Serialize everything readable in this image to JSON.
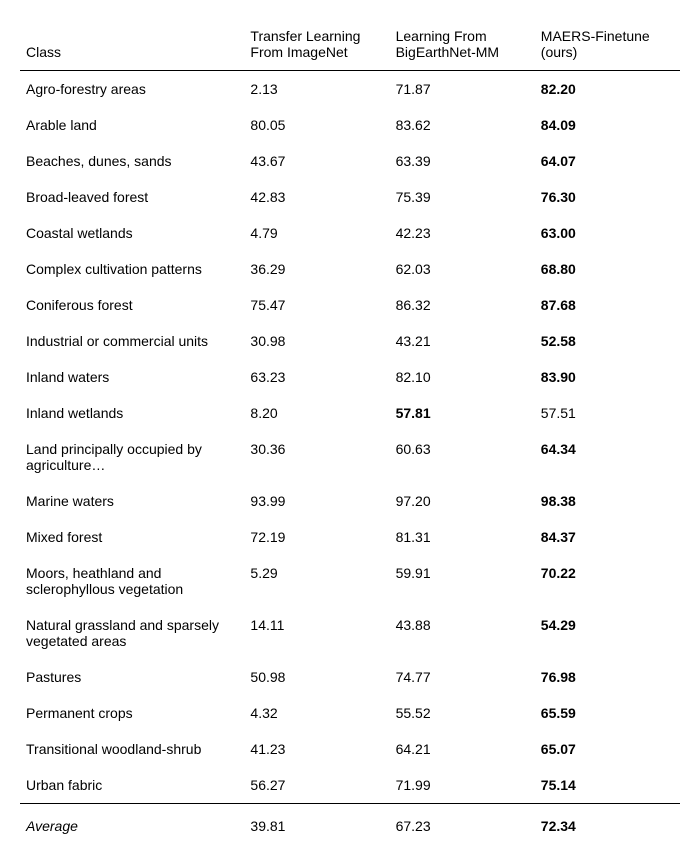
{
  "headers": {
    "class": "Class",
    "col1_l1": "Transfer Learning",
    "col1_l2": "From ImageNet",
    "col2_l1": "Learning From",
    "col2_l2": "BigEarthNet-MM",
    "col3": "MAERS-Finetune (ours)"
  },
  "rows": [
    {
      "class": "Agro-forestry areas",
      "v1": "2.13",
      "v2": "71.87",
      "v3": "82.20",
      "bold": 3
    },
    {
      "class": "Arable land",
      "v1": "80.05",
      "v2": "83.62",
      "v3": "84.09",
      "bold": 3
    },
    {
      "class": "Beaches, dunes, sands",
      "v1": "43.67",
      "v2": "63.39",
      "v3": "64.07",
      "bold": 3
    },
    {
      "class": "Broad-leaved forest",
      "v1": "42.83",
      "v2": "75.39",
      "v3": "76.30",
      "bold": 3
    },
    {
      "class": "Coastal wetlands",
      "v1": "4.79",
      "v2": "42.23",
      "v3": "63.00",
      "bold": 3
    },
    {
      "class": "Complex cultivation patterns",
      "v1": "36.29",
      "v2": "62.03",
      "v3": "68.80",
      "bold": 3
    },
    {
      "class": "Coniferous forest",
      "v1": "75.47",
      "v2": "86.32",
      "v3": "87.68",
      "bold": 3
    },
    {
      "class": "Industrial or commercial units",
      "v1": "30.98",
      "v2": "43.21",
      "v3": "52.58",
      "bold": 3
    },
    {
      "class": "Inland waters",
      "v1": "63.23",
      "v2": "82.10",
      "v3": "83.90",
      "bold": 3
    },
    {
      "class": "Inland wetlands",
      "v1": "8.20",
      "v2": "57.81",
      "v3": "57.51",
      "bold": 2
    },
    {
      "class": "Land principally occupied by agriculture…",
      "v1": "30.36",
      "v2": "60.63",
      "v3": "64.34",
      "bold": 3
    },
    {
      "class": "Marine waters",
      "v1": "93.99",
      "v2": "97.20",
      "v3": "98.38",
      "bold": 3
    },
    {
      "class": "Mixed forest",
      "v1": "72.19",
      "v2": "81.31",
      "v3": "84.37",
      "bold": 3
    },
    {
      "class": "Moors, heathland and sclerophyllous vegetation",
      "v1": "5.29",
      "v2": "59.91",
      "v3": "70.22",
      "bold": 3
    },
    {
      "class": "Natural grassland and sparsely vegetated areas",
      "v1": "14.11",
      "v2": "43.88",
      "v3": "54.29",
      "bold": 3
    },
    {
      "class": "Pastures",
      "v1": "50.98",
      "v2": "74.77",
      "v3": "76.98",
      "bold": 3
    },
    {
      "class": "Permanent crops",
      "v1": "4.32",
      "v2": "55.52",
      "v3": "65.59",
      "bold": 3
    },
    {
      "class": "Transitional woodland-shrub",
      "v1": "41.23",
      "v2": "64.21",
      "v3": "65.07",
      "bold": 3
    },
    {
      "class": "Urban fabric",
      "v1": "56.27",
      "v2": "71.99",
      "v3": "75.14",
      "bold": 3
    }
  ],
  "average": {
    "label": "Average",
    "v1": "39.81",
    "v2": "67.23",
    "v3": "72.34"
  }
}
